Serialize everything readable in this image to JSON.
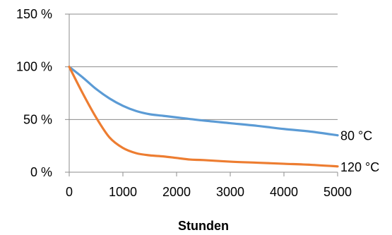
{
  "chart_data": {
    "type": "line",
    "xlabel": "Stunden",
    "ylabel": "",
    "xlim": [
      0,
      5000
    ],
    "ylim": [
      0,
      150
    ],
    "x_ticks": [
      0,
      1000,
      2000,
      3000,
      4000,
      5000
    ],
    "x_tick_labels": [
      "0",
      "1000",
      "2000",
      "3000",
      "4000",
      "5000"
    ],
    "y_ticks": [
      0,
      50,
      100,
      150
    ],
    "y_tick_labels": [
      "0 %",
      "50 %",
      "100 %",
      "150 %"
    ],
    "grid": "horizontal",
    "legend": "line-end labels",
    "series": [
      {
        "name": "80 °C",
        "color": "#5b9bd5",
        "x": [
          0,
          250,
          500,
          750,
          1000,
          1250,
          1500,
          1750,
          2000,
          2500,
          3000,
          3500,
          4000,
          4500,
          5000
        ],
        "y": [
          100,
          90,
          79,
          70,
          63,
          58,
          55,
          53.5,
          52,
          49,
          46.5,
          44,
          41,
          38.5,
          35
        ]
      },
      {
        "name": "120 °C",
        "color": "#ed7d31",
        "x": [
          0,
          250,
          500,
          750,
          1000,
          1250,
          1500,
          1750,
          2000,
          2250,
          2500,
          3000,
          3500,
          4000,
          4500,
          5000
        ],
        "y": [
          100,
          75,
          52,
          33,
          23,
          18,
          16,
          15,
          13.5,
          12,
          11.5,
          10,
          9,
          8,
          7,
          5.5
        ]
      }
    ]
  }
}
